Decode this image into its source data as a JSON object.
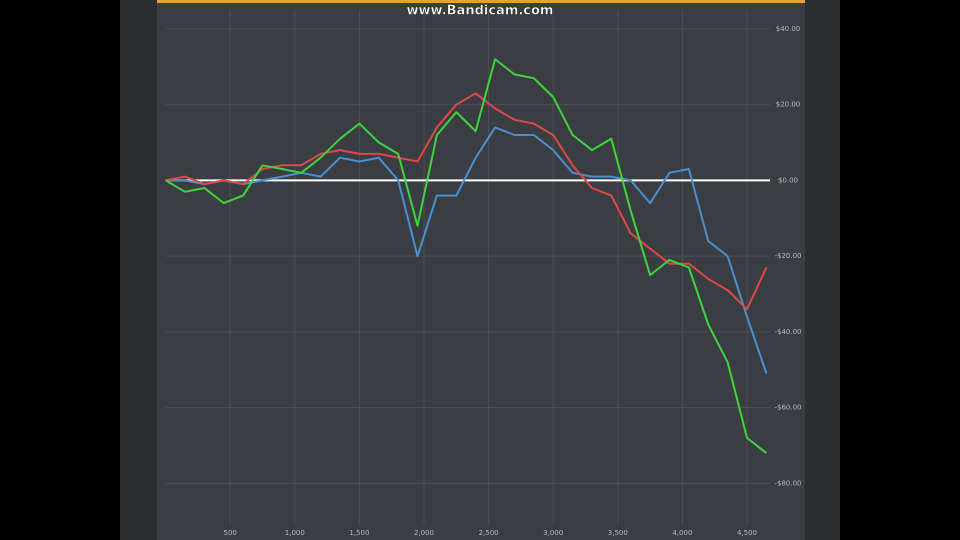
{
  "watermark": "www.Bandicam.com",
  "chart_data": {
    "type": "line",
    "x": [
      0,
      150,
      300,
      450,
      600,
      750,
      900,
      1050,
      1200,
      1350,
      1500,
      1650,
      1800,
      1950,
      2100,
      2250,
      2400,
      2550,
      2700,
      2850,
      3000,
      3150,
      3300,
      3450,
      3600,
      3750,
      3900,
      4050,
      4200,
      4350,
      4500,
      4650
    ],
    "series": [
      {
        "color": "#4a90d0",
        "values": [
          0,
          0,
          -1,
          0,
          -1,
          0,
          1,
          2,
          1,
          6,
          5,
          6,
          0,
          -20,
          -4,
          -4,
          6,
          14,
          12,
          12,
          8,
          2,
          1,
          1,
          0,
          -6,
          2,
          3,
          -16,
          -20,
          -36,
          -51
        ]
      },
      {
        "color": "#e04848",
        "values": [
          0,
          1,
          -1,
          0,
          -1,
          3,
          4,
          4,
          7,
          8,
          7,
          7,
          6,
          5,
          14,
          20,
          23,
          19,
          16,
          15,
          12,
          4,
          -2,
          -4,
          -14,
          -18,
          -22,
          -22,
          -26,
          -29,
          -34,
          -23
        ]
      },
      {
        "color": "#3ed43e",
        "values": [
          0,
          -3,
          -2,
          -6,
          -4,
          4,
          3,
          2,
          6,
          11,
          15,
          10,
          7,
          -12,
          12,
          18,
          13,
          32,
          28,
          27,
          22,
          12,
          8,
          11,
          -8,
          -25,
          -21,
          -23,
          -38,
          -48,
          -68,
          -72
        ]
      }
    ],
    "xlim": [
      0,
      4678
    ],
    "ylim": [
      -91,
      45
    ],
    "xticks": [
      500,
      {
        "value": 1000,
        "label": "1,000"
      },
      {
        "value": 1500,
        "label": "1,500"
      },
      {
        "value": 2000,
        "label": "2,000"
      },
      {
        "value": 2500,
        "label": "2,500"
      },
      {
        "value": 3000,
        "label": "3,000"
      },
      {
        "value": 3500,
        "label": "3,500"
      },
      {
        "value": 4000,
        "label": "4,000"
      },
      {
        "value": 4500,
        "label": "4,500"
      }
    ],
    "yticks": [
      {
        "value": 40,
        "label": "$40.00"
      },
      {
        "value": 20,
        "label": "$20.00"
      },
      {
        "value": 0,
        "label": "$0.00"
      },
      {
        "value": -20,
        "label": "-$20.00"
      },
      {
        "value": -40,
        "label": "-$40.00"
      },
      {
        "value": -60,
        "label": "-$60.00"
      },
      {
        "value": -80,
        "label": "-$80.00"
      }
    ],
    "grid": true,
    "zero_line": {
      "value": 0,
      "color": "#ffffff"
    }
  }
}
